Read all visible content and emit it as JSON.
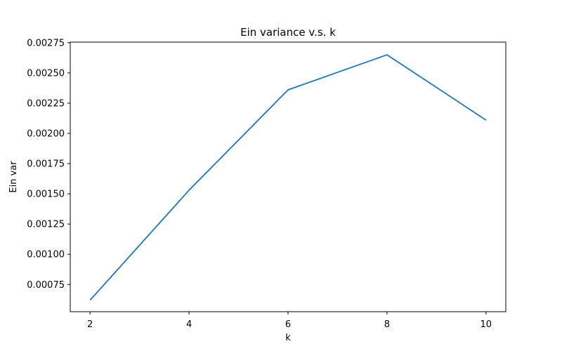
{
  "chart_data": {
    "type": "line",
    "title": "Ein variance v.s. k",
    "xlabel": "k",
    "ylabel": "Ein var",
    "x": [
      2,
      4,
      6,
      8,
      10
    ],
    "series": [
      {
        "values": [
          0.00062,
          0.00153,
          0.00236,
          0.00265,
          0.00211
        ],
        "color": "#1f77b4"
      }
    ],
    "xlim": [
      1.6,
      10.4
    ],
    "ylim": [
      0.000525,
      0.002755
    ],
    "xticks": [
      2,
      4,
      6,
      8,
      10
    ],
    "xtick_labels": [
      "2",
      "4",
      "6",
      "8",
      "10"
    ],
    "yticks": [
      0.00075,
      0.001,
      0.00125,
      0.0015,
      0.00175,
      0.002,
      0.00225,
      0.0025,
      0.00275
    ],
    "ytick_labels": [
      "0.00075",
      "0.00100",
      "0.00125",
      "0.00150",
      "0.00175",
      "0.00200",
      "0.00225",
      "0.00250",
      "0.00275"
    ],
    "grid": false,
    "legend": false
  }
}
